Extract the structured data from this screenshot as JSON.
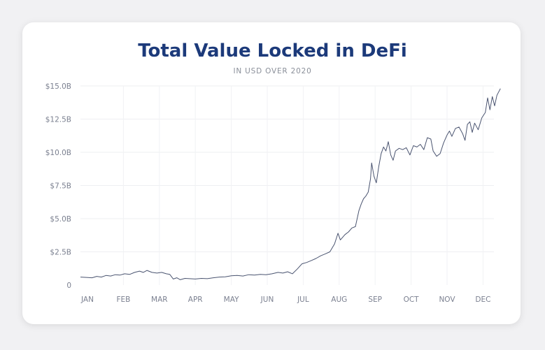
{
  "chart_data": {
    "type": "line",
    "title": "Total Value Locked in DeFi",
    "subtitle": "IN USD OVER 2020",
    "xlabel": "",
    "ylabel": "",
    "ylim": [
      0,
      15
    ],
    "y_unit": "billion USD",
    "yticks": [
      0,
      2.5,
      5,
      7.5,
      10,
      12.5,
      15
    ],
    "ytick_labels": [
      "0",
      "$2.5B",
      "$5.0B",
      "$7.5B",
      "$10.0B",
      "$12.5B",
      "$15.0B"
    ],
    "xtick_labels": [
      "JAN",
      "FEB",
      "MAR",
      "APR",
      "MAY",
      "JUN",
      "JUL",
      "AUG",
      "SEP",
      "OCT",
      "NOV",
      "DEC"
    ],
    "grid": true,
    "line_color": "#4a5470",
    "title_color": "#1c3a7a",
    "series": [
      {
        "points": [
          [
            "2020-01-01",
            0.6
          ],
          [
            "2020-01-05",
            0.55
          ],
          [
            "2020-01-09",
            0.65
          ],
          [
            "2020-01-13",
            0.6
          ],
          [
            "2020-01-17",
            0.72
          ],
          [
            "2020-01-21",
            0.68
          ],
          [
            "2020-01-25",
            0.78
          ],
          [
            "2020-01-29",
            0.75
          ],
          [
            "2020-02-02",
            0.85
          ],
          [
            "2020-02-06",
            0.8
          ],
          [
            "2020-02-10",
            0.95
          ],
          [
            "2020-02-14",
            1.05
          ],
          [
            "2020-02-17",
            0.95
          ],
          [
            "2020-02-20",
            1.1
          ],
          [
            "2020-02-24",
            0.95
          ],
          [
            "2020-02-28",
            0.9
          ],
          [
            "2020-03-03",
            0.95
          ],
          [
            "2020-03-07",
            0.85
          ],
          [
            "2020-03-10",
            0.8
          ],
          [
            "2020-03-13",
            0.45
          ],
          [
            "2020-03-16",
            0.55
          ],
          [
            "2020-03-19",
            0.4
          ],
          [
            "2020-03-23",
            0.5
          ],
          [
            "2020-03-27",
            0.48
          ],
          [
            "2020-04-01",
            0.45
          ],
          [
            "2020-04-06",
            0.5
          ],
          [
            "2020-04-11",
            0.48
          ],
          [
            "2020-04-16",
            0.55
          ],
          [
            "2020-04-21",
            0.6
          ],
          [
            "2020-04-26",
            0.62
          ],
          [
            "2020-05-01",
            0.7
          ],
          [
            "2020-05-06",
            0.72
          ],
          [
            "2020-05-11",
            0.68
          ],
          [
            "2020-05-16",
            0.78
          ],
          [
            "2020-05-21",
            0.75
          ],
          [
            "2020-05-26",
            0.8
          ],
          [
            "2020-05-31",
            0.78
          ],
          [
            "2020-06-05",
            0.85
          ],
          [
            "2020-06-10",
            0.95
          ],
          [
            "2020-06-14",
            0.9
          ],
          [
            "2020-06-18",
            1.0
          ],
          [
            "2020-06-22",
            0.85
          ],
          [
            "2020-06-26",
            1.2
          ],
          [
            "2020-06-30",
            1.6
          ],
          [
            "2020-07-04",
            1.7
          ],
          [
            "2020-07-08",
            1.85
          ],
          [
            "2020-07-12",
            2.0
          ],
          [
            "2020-07-16",
            2.2
          ],
          [
            "2020-07-20",
            2.35
          ],
          [
            "2020-07-24",
            2.5
          ],
          [
            "2020-07-28",
            3.1
          ],
          [
            "2020-07-31",
            3.9
          ],
          [
            "2020-08-02",
            3.4
          ],
          [
            "2020-08-06",
            3.8
          ],
          [
            "2020-08-09",
            4.0
          ],
          [
            "2020-08-12",
            4.3
          ],
          [
            "2020-08-15",
            4.4
          ],
          [
            "2020-08-18",
            5.6
          ],
          [
            "2020-08-20",
            6.1
          ],
          [
            "2020-08-22",
            6.5
          ],
          [
            "2020-08-24",
            6.7
          ],
          [
            "2020-08-26",
            7.0
          ],
          [
            "2020-08-28",
            8.0
          ],
          [
            "2020-08-29",
            9.2
          ],
          [
            "2020-08-31",
            8.2
          ],
          [
            "2020-09-02",
            7.7
          ],
          [
            "2020-09-04",
            8.9
          ],
          [
            "2020-09-06",
            9.9
          ],
          [
            "2020-09-08",
            10.4
          ],
          [
            "2020-09-10",
            10.1
          ],
          [
            "2020-09-12",
            10.8
          ],
          [
            "2020-09-14",
            9.8
          ],
          [
            "2020-09-16",
            9.4
          ],
          [
            "2020-09-18",
            10.1
          ],
          [
            "2020-09-21",
            10.3
          ],
          [
            "2020-09-24",
            10.2
          ],
          [
            "2020-09-27",
            10.35
          ],
          [
            "2020-09-30",
            9.8
          ],
          [
            "2020-10-03",
            10.5
          ],
          [
            "2020-10-06",
            10.4
          ],
          [
            "2020-10-09",
            10.6
          ],
          [
            "2020-10-12",
            10.2
          ],
          [
            "2020-10-15",
            11.1
          ],
          [
            "2020-10-18",
            11.0
          ],
          [
            "2020-10-20",
            10.1
          ],
          [
            "2020-10-23",
            9.7
          ],
          [
            "2020-10-26",
            9.9
          ],
          [
            "2020-10-29",
            10.7
          ],
          [
            "2020-11-01",
            11.3
          ],
          [
            "2020-11-03",
            11.6
          ],
          [
            "2020-11-05",
            11.2
          ],
          [
            "2020-11-08",
            11.8
          ],
          [
            "2020-11-11",
            11.9
          ],
          [
            "2020-11-14",
            11.4
          ],
          [
            "2020-11-16",
            10.9
          ],
          [
            "2020-11-18",
            12.1
          ],
          [
            "2020-11-20",
            12.3
          ],
          [
            "2020-11-22",
            11.5
          ],
          [
            "2020-11-24",
            12.2
          ],
          [
            "2020-11-27",
            11.7
          ],
          [
            "2020-11-30",
            12.6
          ],
          [
            "2020-12-03",
            13.0
          ],
          [
            "2020-12-05",
            14.1
          ],
          [
            "2020-12-07",
            13.2
          ],
          [
            "2020-12-09",
            14.2
          ],
          [
            "2020-12-11",
            13.5
          ],
          [
            "2020-12-13",
            14.3
          ],
          [
            "2020-12-16",
            14.8
          ]
        ]
      }
    ]
  }
}
